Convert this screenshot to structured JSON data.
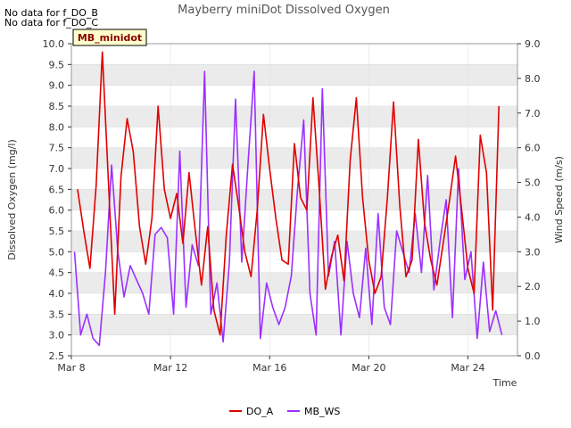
{
  "notes": [
    "No data for f_DO_B",
    "No data for f_DO_C"
  ],
  "badge": "MB_minidot",
  "colors": {
    "DO_A": "#e00000",
    "MB_WS": "#9b30ff",
    "band": "#ebebeb",
    "badge_fill": "#ffffcc",
    "badge_text": "#8b0000"
  },
  "chart_data": {
    "type": "line",
    "title": "Mayberry miniDot Dissolved Oxygen",
    "xlabel": "Time",
    "ylabel": "Dissolved Oxygen (mg/l)",
    "y2label": "Wind Speed (m/s)",
    "xlim": [
      "2024-03-08",
      "2024-03-26"
    ],
    "ylim": [
      2.5,
      10.0
    ],
    "y2lim": [
      0.0,
      9.0
    ],
    "x_ticks": [
      {
        "date": "2024-03-08",
        "label": "Mar 8"
      },
      {
        "date": "2024-03-12",
        "label": "Mar 12"
      },
      {
        "date": "2024-03-16",
        "label": "Mar 16"
      },
      {
        "date": "2024-03-20",
        "label": "Mar 20"
      },
      {
        "date": "2024-03-24",
        "label": "Mar 24"
      }
    ],
    "y_ticks": [
      "2.5",
      "3.0",
      "3.5",
      "4.0",
      "4.5",
      "5.0",
      "5.5",
      "6.0",
      "6.5",
      "7.0",
      "7.5",
      "8.0",
      "8.5",
      "9.0",
      "9.5",
      "10.0"
    ],
    "y2_ticks": [
      "0.0",
      "1.0",
      "2.0",
      "3.0",
      "4.0",
      "5.0",
      "6.0",
      "7.0",
      "8.0",
      "9.0"
    ],
    "grid": true,
    "legend": "bottom-center",
    "series": [
      {
        "name": "DO_A",
        "axis": "left",
        "x": [
          "2024-03-08 06:00",
          "2024-03-08 12:00",
          "2024-03-08 18:00",
          "2024-03-09 00:00",
          "2024-03-09 06:00",
          "2024-03-09 12:00",
          "2024-03-09 18:00",
          "2024-03-10 00:00",
          "2024-03-10 06:00",
          "2024-03-10 12:00",
          "2024-03-10 18:00",
          "2024-03-11 00:00",
          "2024-03-11 06:00",
          "2024-03-11 12:00",
          "2024-03-11 18:00",
          "2024-03-12 00:00",
          "2024-03-12 06:00",
          "2024-03-12 12:00",
          "2024-03-12 18:00",
          "2024-03-13 00:00",
          "2024-03-13 06:00",
          "2024-03-13 12:00",
          "2024-03-13 18:00",
          "2024-03-14 00:00",
          "2024-03-14 06:00",
          "2024-03-14 12:00",
          "2024-03-14 18:00",
          "2024-03-15 00:00",
          "2024-03-15 06:00",
          "2024-03-15 12:00",
          "2024-03-15 18:00",
          "2024-03-16 00:00",
          "2024-03-16 06:00",
          "2024-03-16 12:00",
          "2024-03-16 18:00",
          "2024-03-17 00:00",
          "2024-03-17 06:00",
          "2024-03-17 12:00",
          "2024-03-17 18:00",
          "2024-03-18 00:00",
          "2024-03-18 06:00",
          "2024-03-18 12:00",
          "2024-03-18 18:00",
          "2024-03-19 00:00",
          "2024-03-19 06:00",
          "2024-03-19 12:00",
          "2024-03-19 18:00",
          "2024-03-20 00:00",
          "2024-03-20 06:00",
          "2024-03-20 12:00",
          "2024-03-20 18:00",
          "2024-03-21 00:00",
          "2024-03-21 06:00",
          "2024-03-21 12:00",
          "2024-03-21 18:00",
          "2024-03-22 00:00",
          "2024-03-22 06:00",
          "2024-03-22 12:00",
          "2024-03-22 18:00",
          "2024-03-23 00:00",
          "2024-03-23 06:00",
          "2024-03-23 12:00",
          "2024-03-23 18:00",
          "2024-03-24 00:00",
          "2024-03-24 06:00",
          "2024-03-24 12:00",
          "2024-03-24 18:00",
          "2024-03-25 00:00",
          "2024-03-25 06:00"
        ],
        "values": [
          6.5,
          5.5,
          4.6,
          6.6,
          9.8,
          6.6,
          3.5,
          6.8,
          8.2,
          7.4,
          5.6,
          4.7,
          5.8,
          8.5,
          6.5,
          5.8,
          6.4,
          5.2,
          6.9,
          5.5,
          4.2,
          5.6,
          3.6,
          3.0,
          5.4,
          7.1,
          6.1,
          5.0,
          4.4,
          6.0,
          8.3,
          7.0,
          5.8,
          4.8,
          4.7,
          7.6,
          6.3,
          6.0,
          8.7,
          6.5,
          4.1,
          4.9,
          5.4,
          4.3,
          7.2,
          8.7,
          6.3,
          4.8,
          4.0,
          4.4,
          6.3,
          8.6,
          6.1,
          4.4,
          4.8,
          7.7,
          5.7,
          4.8,
          4.2,
          5.2,
          6.2,
          7.3,
          6.0,
          4.6,
          4.0,
          7.8,
          6.9,
          3.6,
          8.5
        ]
      },
      {
        "name": "MB_WS",
        "axis": "right",
        "x": [
          "2024-03-08 03:00",
          "2024-03-08 09:00",
          "2024-03-08 15:00",
          "2024-03-08 21:00",
          "2024-03-09 03:00",
          "2024-03-09 09:00",
          "2024-03-09 15:00",
          "2024-03-09 21:00",
          "2024-03-10 03:00",
          "2024-03-10 09:00",
          "2024-03-10 15:00",
          "2024-03-10 21:00",
          "2024-03-11 03:00",
          "2024-03-11 09:00",
          "2024-03-11 15:00",
          "2024-03-11 21:00",
          "2024-03-12 03:00",
          "2024-03-12 09:00",
          "2024-03-12 15:00",
          "2024-03-12 21:00",
          "2024-03-13 03:00",
          "2024-03-13 09:00",
          "2024-03-13 15:00",
          "2024-03-13 21:00",
          "2024-03-14 03:00",
          "2024-03-14 09:00",
          "2024-03-14 15:00",
          "2024-03-14 21:00",
          "2024-03-15 03:00",
          "2024-03-15 09:00",
          "2024-03-15 15:00",
          "2024-03-15 21:00",
          "2024-03-16 03:00",
          "2024-03-16 09:00",
          "2024-03-16 15:00",
          "2024-03-16 21:00",
          "2024-03-17 03:00",
          "2024-03-17 09:00",
          "2024-03-17 15:00",
          "2024-03-17 21:00",
          "2024-03-18 03:00",
          "2024-03-18 09:00",
          "2024-03-18 15:00",
          "2024-03-18 21:00",
          "2024-03-19 03:00",
          "2024-03-19 09:00",
          "2024-03-19 15:00",
          "2024-03-19 21:00",
          "2024-03-20 03:00",
          "2024-03-20 09:00",
          "2024-03-20 15:00",
          "2024-03-20 21:00",
          "2024-03-21 03:00",
          "2024-03-21 09:00",
          "2024-03-21 15:00",
          "2024-03-21 21:00",
          "2024-03-22 03:00",
          "2024-03-22 09:00",
          "2024-03-22 15:00",
          "2024-03-22 21:00",
          "2024-03-23 03:00",
          "2024-03-23 09:00",
          "2024-03-23 15:00",
          "2024-03-23 21:00",
          "2024-03-24 03:00",
          "2024-03-24 09:00",
          "2024-03-24 15:00",
          "2024-03-24 21:00",
          "2024-03-25 03:00",
          "2024-03-25 09:00"
        ],
        "values": [
          3.0,
          0.6,
          1.2,
          0.5,
          0.3,
          2.4,
          5.5,
          3.0,
          1.7,
          2.6,
          2.2,
          1.8,
          1.2,
          3.5,
          3.7,
          3.4,
          1.2,
          5.9,
          1.4,
          3.2,
          2.6,
          8.2,
          1.2,
          2.1,
          0.4,
          2.7,
          7.4,
          2.7,
          5.5,
          8.2,
          0.5,
          2.1,
          1.4,
          0.9,
          1.4,
          2.3,
          4.8,
          6.8,
          1.8,
          0.6,
          7.7,
          2.3,
          3.3,
          0.6,
          3.3,
          1.8,
          1.1,
          3.1,
          0.9,
          4.1,
          1.4,
          0.9,
          3.6,
          3.0,
          2.4,
          4.1,
          2.4,
          5.2,
          1.9,
          3.3,
          4.5,
          1.1,
          5.4,
          2.2,
          3.0,
          0.5,
          2.7,
          0.7,
          1.3,
          0.6
        ]
      }
    ]
  }
}
